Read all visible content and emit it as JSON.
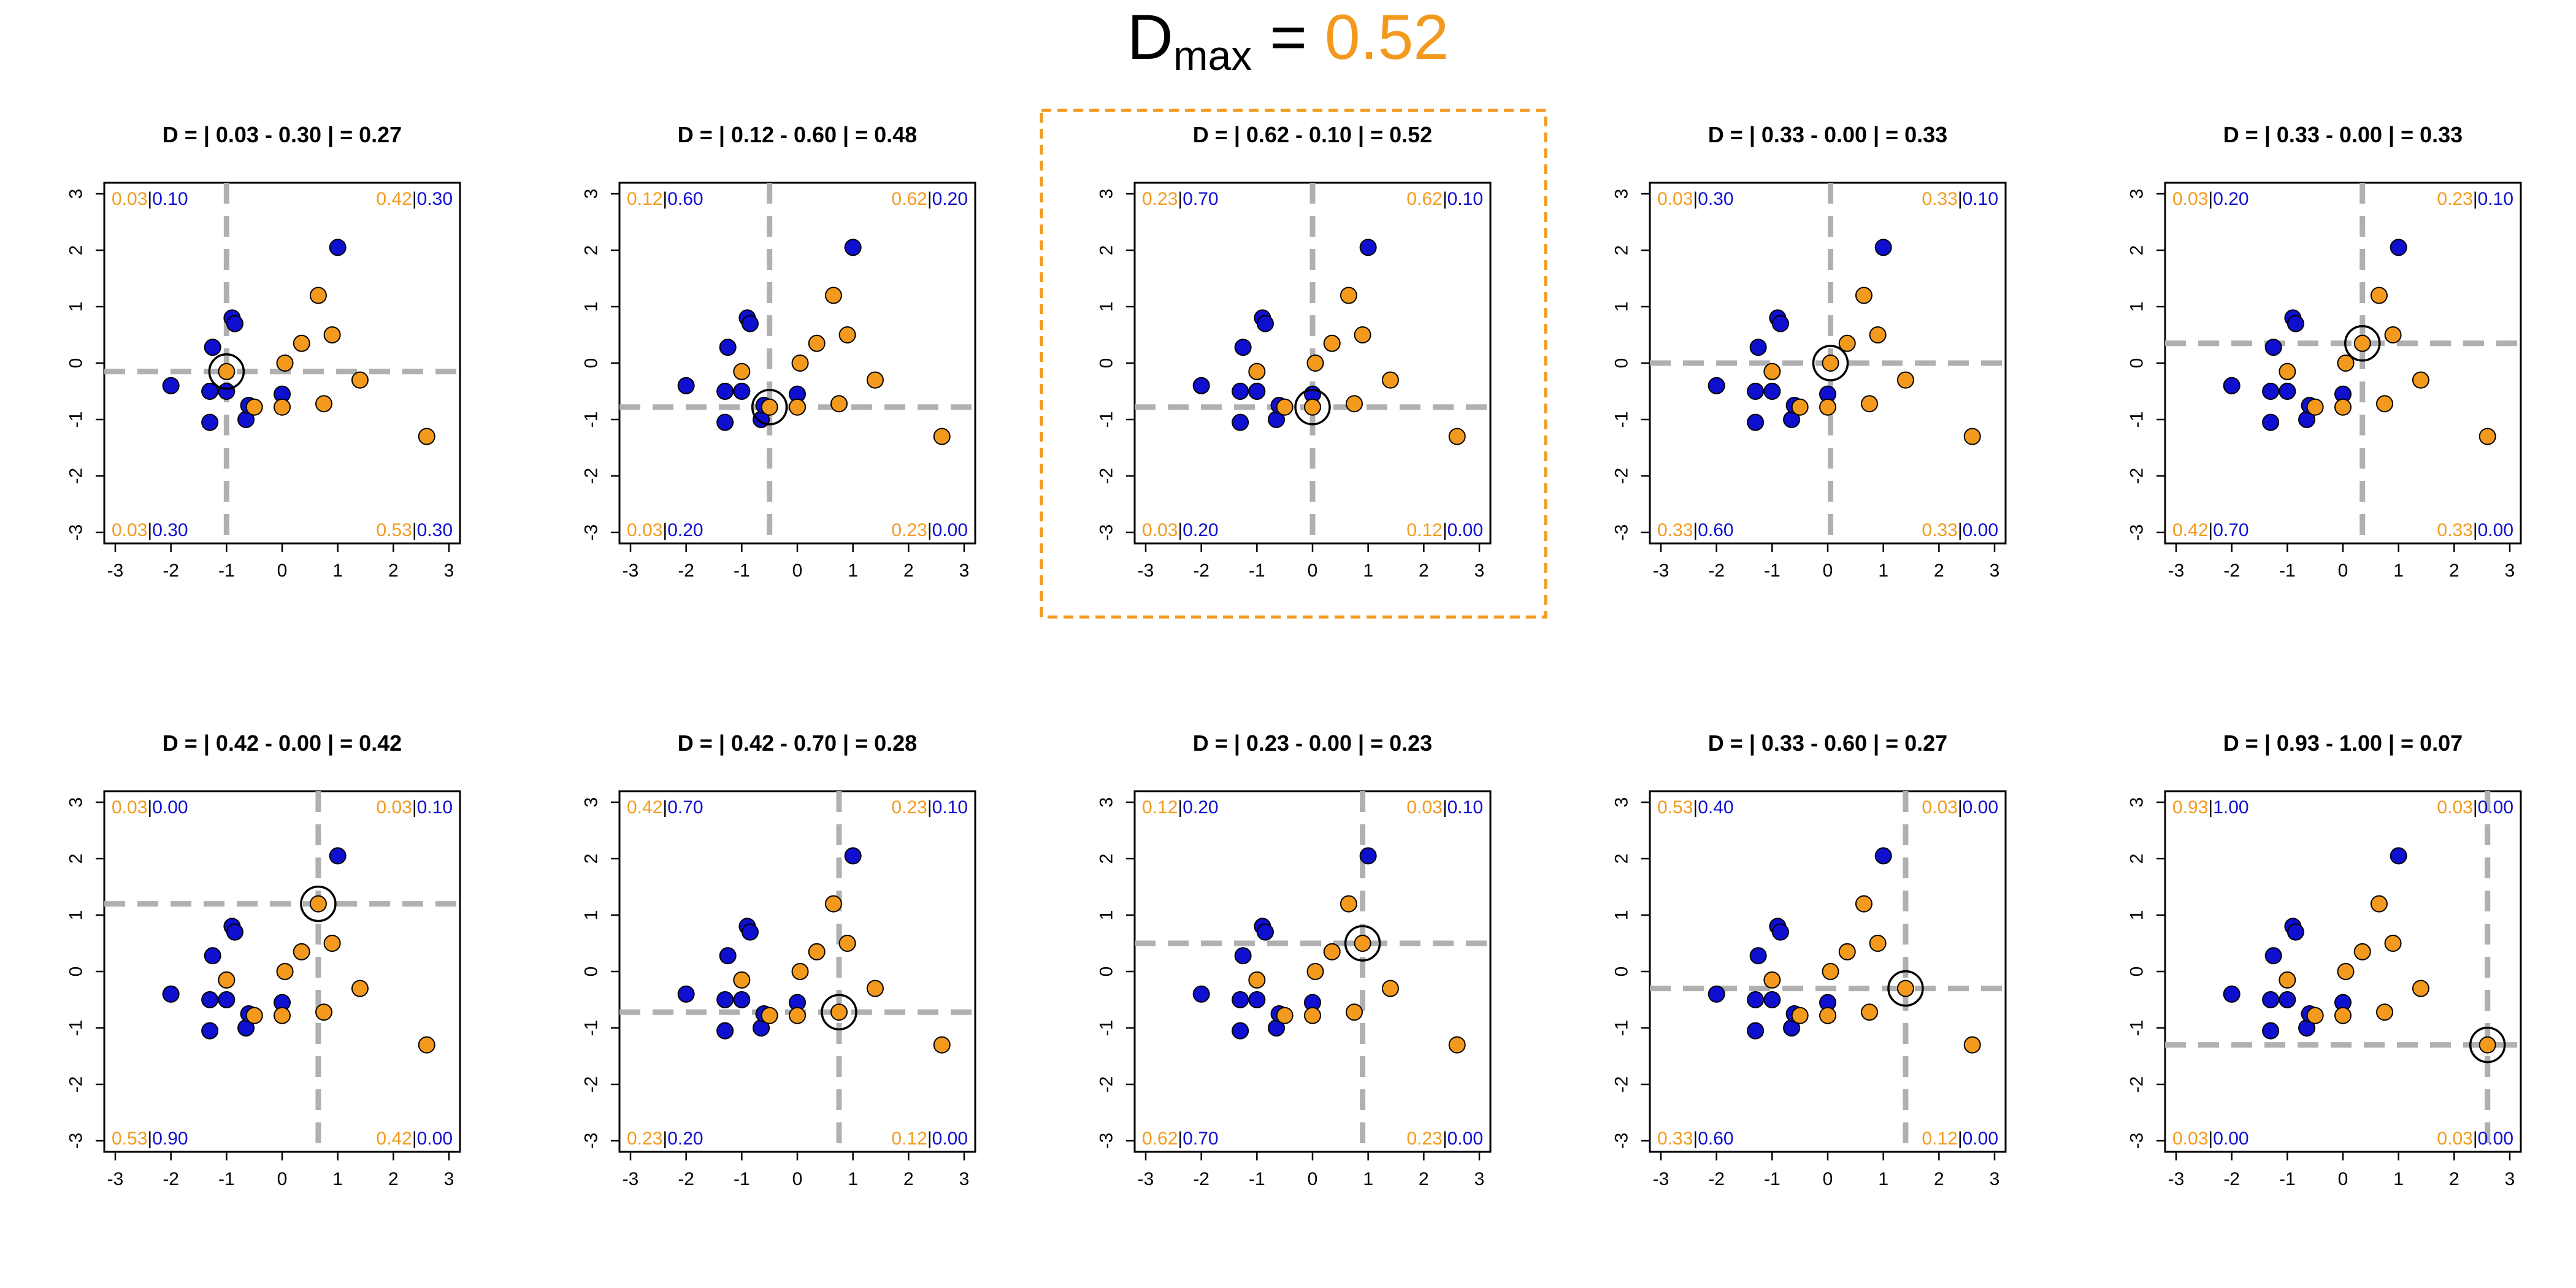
{
  "header": {
    "dmax_base": "D",
    "dmax_sub": "max",
    "dmax_equals": " = ",
    "dmax_value": "0.52"
  },
  "colors": {
    "orange": "#f39a1e",
    "blue": "#0f0fd0",
    "divider": "#b0b0b0",
    "highlight": "#f39a1e"
  },
  "chart_data": {
    "type": "scatter",
    "xlim": [
      -3,
      3
    ],
    "ylim": [
      -3,
      3
    ],
    "xticks": [
      "-3",
      "-2",
      "-1",
      "0",
      "1",
      "2",
      "3"
    ],
    "yticks": [
      "-3",
      "-2",
      "-1",
      "0",
      "1",
      "2",
      "3"
    ],
    "series": [
      {
        "name": "blue",
        "points": [
          [
            -2.0,
            -0.4
          ],
          [
            -1.3,
            -1.05
          ],
          [
            -1.25,
            0.28
          ],
          [
            -1.3,
            -0.5
          ],
          [
            -1.0,
            -0.5
          ],
          [
            -0.9,
            0.8
          ],
          [
            -0.85,
            0.7
          ],
          [
            -0.65,
            -1.0
          ],
          [
            -0.6,
            -0.75
          ],
          [
            0.0,
            -0.55
          ],
          [
            1.0,
            2.05
          ]
        ]
      },
      {
        "name": "orange",
        "points": [
          [
            -1.0,
            -0.15
          ],
          [
            -0.5,
            -0.78
          ],
          [
            0.0,
            -0.78
          ],
          [
            0.05,
            0.0
          ],
          [
            0.35,
            0.35
          ],
          [
            0.65,
            1.2
          ],
          [
            0.75,
            -0.72
          ],
          [
            0.9,
            0.5
          ],
          [
            1.4,
            -0.3
          ],
          [
            2.6,
            -1.3
          ]
        ]
      }
    ],
    "panels": [
      {
        "title": "D = | 0.03 - 0.30 | = 0.27",
        "origin": [
          -1.0,
          -0.15
        ],
        "q": {
          "tl": [
            "0.03",
            "0.10"
          ],
          "tr": [
            "0.42",
            "0.30"
          ],
          "bl": [
            "0.03",
            "0.30"
          ],
          "br": [
            "0.53",
            "0.30"
          ]
        },
        "highlight": false
      },
      {
        "title": "D = | 0.12 - 0.60 | = 0.48",
        "origin": [
          -0.5,
          -0.78
        ],
        "q": {
          "tl": [
            "0.12",
            "0.60"
          ],
          "tr": [
            "0.62",
            "0.20"
          ],
          "bl": [
            "0.03",
            "0.20"
          ],
          "br": [
            "0.23",
            "0.00"
          ]
        },
        "highlight": false
      },
      {
        "title": "D = | 0.62 - 0.10 | = 0.52",
        "origin": [
          0.0,
          -0.78
        ],
        "q": {
          "tl": [
            "0.23",
            "0.70"
          ],
          "tr": [
            "0.62",
            "0.10"
          ],
          "bl": [
            "0.03",
            "0.20"
          ],
          "br": [
            "0.12",
            "0.00"
          ]
        },
        "highlight": true
      },
      {
        "title": "D = | 0.33 - 0.00 | = 0.33",
        "origin": [
          0.05,
          0.0
        ],
        "q": {
          "tl": [
            "0.03",
            "0.30"
          ],
          "tr": [
            "0.33",
            "0.10"
          ],
          "bl": [
            "0.33",
            "0.60"
          ],
          "br": [
            "0.33",
            "0.00"
          ]
        },
        "highlight": false
      },
      {
        "title": "D = | 0.33 - 0.00 | = 0.33",
        "origin": [
          0.35,
          0.35
        ],
        "q": {
          "tl": [
            "0.03",
            "0.20"
          ],
          "tr": [
            "0.23",
            "0.10"
          ],
          "bl": [
            "0.42",
            "0.70"
          ],
          "br": [
            "0.33",
            "0.00"
          ]
        },
        "highlight": false
      },
      {
        "title": "D = | 0.42 - 0.00 | = 0.42",
        "origin": [
          0.65,
          1.2
        ],
        "q": {
          "tl": [
            "0.03",
            "0.00"
          ],
          "tr": [
            "0.03",
            "0.10"
          ],
          "bl": [
            "0.53",
            "0.90"
          ],
          "br": [
            "0.42",
            "0.00"
          ]
        },
        "highlight": false
      },
      {
        "title": "D = | 0.42 - 0.70 | = 0.28",
        "origin": [
          0.75,
          -0.72
        ],
        "q": {
          "tl": [
            "0.42",
            "0.70"
          ],
          "tr": [
            "0.23",
            "0.10"
          ],
          "bl": [
            "0.23",
            "0.20"
          ],
          "br": [
            "0.12",
            "0.00"
          ]
        },
        "highlight": false
      },
      {
        "title": "D = | 0.23 - 0.00 | = 0.23",
        "origin": [
          0.9,
          0.5
        ],
        "q": {
          "tl": [
            "0.12",
            "0.20"
          ],
          "tr": [
            "0.03",
            "0.10"
          ],
          "bl": [
            "0.62",
            "0.70"
          ],
          "br": [
            "0.23",
            "0.00"
          ]
        },
        "highlight": false
      },
      {
        "title": "D = | 0.33 - 0.60 | = 0.27",
        "origin": [
          1.4,
          -0.3
        ],
        "q": {
          "tl": [
            "0.53",
            "0.40"
          ],
          "tr": [
            "0.03",
            "0.00"
          ],
          "bl": [
            "0.33",
            "0.60"
          ],
          "br": [
            "0.12",
            "0.00"
          ]
        },
        "highlight": false
      },
      {
        "title": "D = | 0.93 - 1.00 | = 0.07",
        "origin": [
          2.6,
          -1.3
        ],
        "q": {
          "tl": [
            "0.93",
            "1.00"
          ],
          "tr": [
            "0.03",
            "0.00"
          ],
          "bl": [
            "0.03",
            "0.00"
          ],
          "br": [
            "0.03",
            "0.00"
          ]
        },
        "highlight": false
      }
    ]
  }
}
